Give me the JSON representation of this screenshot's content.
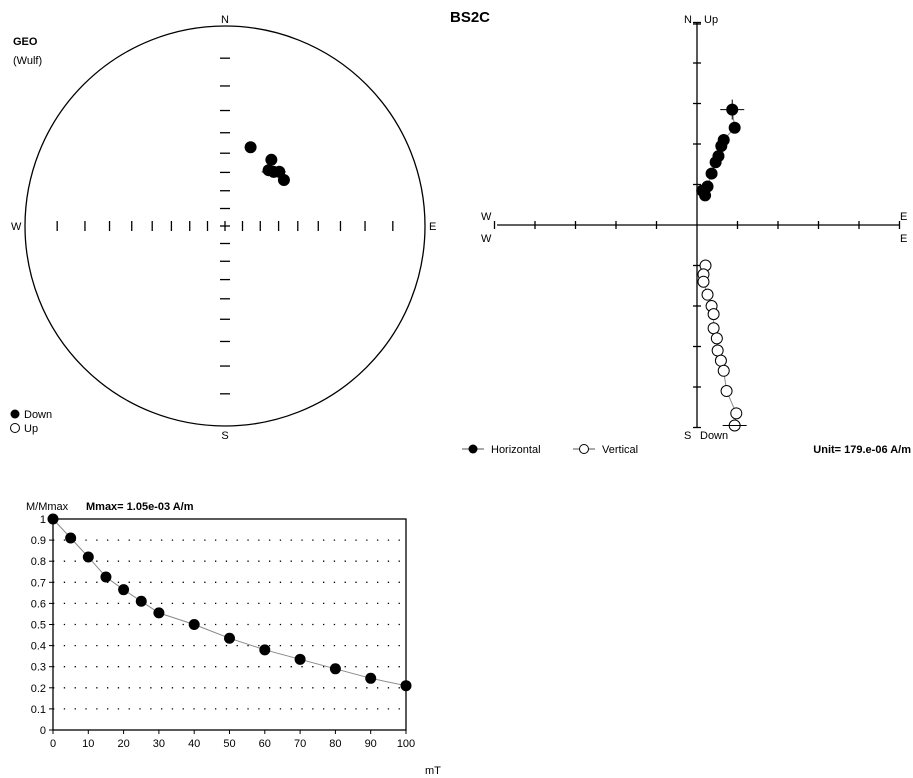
{
  "title": "BS2C",
  "stereonet": {
    "coord_label": "GEO",
    "projection_label": "(Wulf)",
    "dir_n": "N",
    "dir_s": "S",
    "dir_e": "E",
    "dir_w": "W",
    "legend_down": "Down",
    "legend_up": "Up",
    "points": [
      {
        "dec": 18,
        "inc": 45
      },
      {
        "dec": 35,
        "inc": 46
      },
      {
        "dec": 45,
        "inc": 48
      },
      {
        "dec": 52,
        "inc": 49
      },
      {
        "dec": 38,
        "inc": 51
      },
      {
        "dec": 42,
        "inc": 50
      }
    ]
  },
  "zijderveld": {
    "label_n": "N",
    "label_up": "Up",
    "label_s": "S",
    "label_down": "Down",
    "label_w_top": "W",
    "label_w_bottom": "W",
    "label_e_top": "E",
    "label_e_bottom": "E",
    "legend_horizontal": "Horizontal",
    "legend_vertical": "Vertical",
    "unit_text": "Unit=  179.e-06 A/m",
    "horizontal_points": [
      {
        "e": 0.87,
        "n": 2.85
      },
      {
        "e": 0.93,
        "n": 2.4
      },
      {
        "e": 0.66,
        "n": 2.1
      },
      {
        "e": 0.6,
        "n": 1.95
      },
      {
        "e": 0.53,
        "n": 1.7
      },
      {
        "e": 0.46,
        "n": 1.55
      },
      {
        "e": 0.36,
        "n": 1.27
      },
      {
        "e": 0.26,
        "n": 0.95
      },
      {
        "e": 0.13,
        "n": 0.85
      },
      {
        "e": 0.2,
        "n": 0.73
      }
    ],
    "vertical_points": [
      {
        "e": 0.21,
        "up": -1.0
      },
      {
        "e": 0.16,
        "up": -1.22
      },
      {
        "e": 0.16,
        "up": -1.4
      },
      {
        "e": 0.26,
        "up": -1.72
      },
      {
        "e": 0.36,
        "up": -2.0
      },
      {
        "e": 0.41,
        "up": -2.2
      },
      {
        "e": 0.41,
        "up": -2.55
      },
      {
        "e": 0.49,
        "up": -2.8
      },
      {
        "e": 0.51,
        "up": -3.1
      },
      {
        "e": 0.59,
        "up": -3.35
      },
      {
        "e": 0.66,
        "up": -3.6
      },
      {
        "e": 0.73,
        "up": -4.1
      },
      {
        "e": 0.97,
        "up": -4.65
      },
      {
        "e": 0.93,
        "up": -4.95
      }
    ]
  },
  "demag": {
    "ylabel": "M/Mmax",
    "mmax_text": "Mmax= 1.05e-03  A/m",
    "xlabel": "mT",
    "x_ticks": [
      "0",
      "10",
      "20",
      "30",
      "40",
      "50",
      "60",
      "70",
      "80",
      "90",
      "100"
    ],
    "y_ticks": [
      "0",
      "0.1",
      "0.2",
      "0.3",
      "0.4",
      "0.5",
      "0.6",
      "0.7",
      "0.8",
      "0.9",
      "1"
    ]
  },
  "chart_data": {
    "type": "line",
    "x": [
      0,
      5,
      10,
      15,
      20,
      25,
      30,
      40,
      50,
      60,
      70,
      80,
      90,
      100
    ],
    "series": [
      {
        "values": [
          1.0,
          0.91,
          0.82,
          0.725,
          0.665,
          0.61,
          0.555,
          0.5,
          0.435,
          0.38,
          0.335,
          0.29,
          0.245,
          0.21
        ]
      }
    ],
    "xlabel": "mT",
    "ylabel": "M/Mmax",
    "xlim": [
      0,
      100
    ],
    "ylim": [
      0,
      1
    ],
    "grid": true
  }
}
